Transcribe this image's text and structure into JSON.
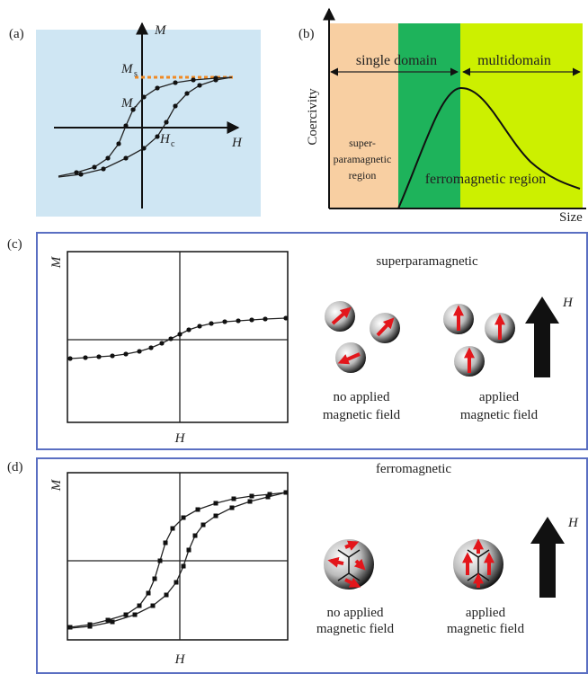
{
  "panel_a": {
    "label": "(a)",
    "axis_y": "M",
    "axis_x": "H",
    "ms": "M",
    "ms_sub": "s",
    "mr": "M",
    "mr_sub": "r",
    "hc": "H",
    "hc_sub": "c"
  },
  "panel_b": {
    "label": "(b)",
    "axis_y": "Coercivity",
    "axis_x": "Size",
    "single_domain": "single domain",
    "multidomain": "multidomain",
    "super_region": [
      "super-",
      "paramagnetic",
      "region"
    ],
    "ferro_region": "ferromagnetic region"
  },
  "panel_c": {
    "label": "(c)",
    "axis_y": "M",
    "axis_x": "H",
    "title": "superparamagnetic",
    "no_field": [
      "no applied",
      "magnetic field"
    ],
    "field": [
      "applied",
      "magnetic field"
    ],
    "field_symbol": "H"
  },
  "panel_d": {
    "label": "(d)",
    "axis_y": "M",
    "axis_x": "H",
    "title": "ferromagnetic",
    "no_field": [
      "no applied",
      "magnetic field"
    ],
    "field": [
      "applied",
      "magnetic field"
    ],
    "field_symbol": "H"
  }
}
